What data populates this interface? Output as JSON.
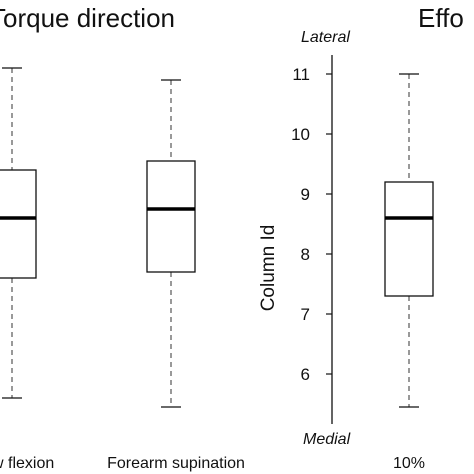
{
  "chart_data": [
    {
      "type": "box",
      "title": "Torque direction",
      "categories": [
        "Elbow flexion",
        "Forearm supination"
      ],
      "category_labels_visible": [
        "w flexion",
        "Forearm supination"
      ],
      "ylim": [
        5.3,
        11.5
      ],
      "boxes": [
        {
          "category": "Elbow flexion",
          "min": 5.6,
          "q1": 7.6,
          "median": 8.6,
          "q3": 9.4,
          "max": 11.1
        },
        {
          "category": "Forearm supination",
          "min": 5.45,
          "q1": 7.7,
          "median": 8.75,
          "q3": 9.55,
          "max": 10.9
        }
      ]
    },
    {
      "type": "box",
      "title": "Effo",
      "ylabel": "Column Id",
      "ylim": [
        5.3,
        11.5
      ],
      "yticks": [
        6,
        7,
        8,
        9,
        10,
        11
      ],
      "annotations": {
        "top": "Lateral",
        "bottom": "Medial"
      },
      "categories": [
        "10%"
      ],
      "boxes": [
        {
          "category": "10%",
          "min": 5.45,
          "q1": 7.3,
          "median": 8.6,
          "q3": 9.2,
          "max": 11.0
        }
      ]
    }
  ]
}
